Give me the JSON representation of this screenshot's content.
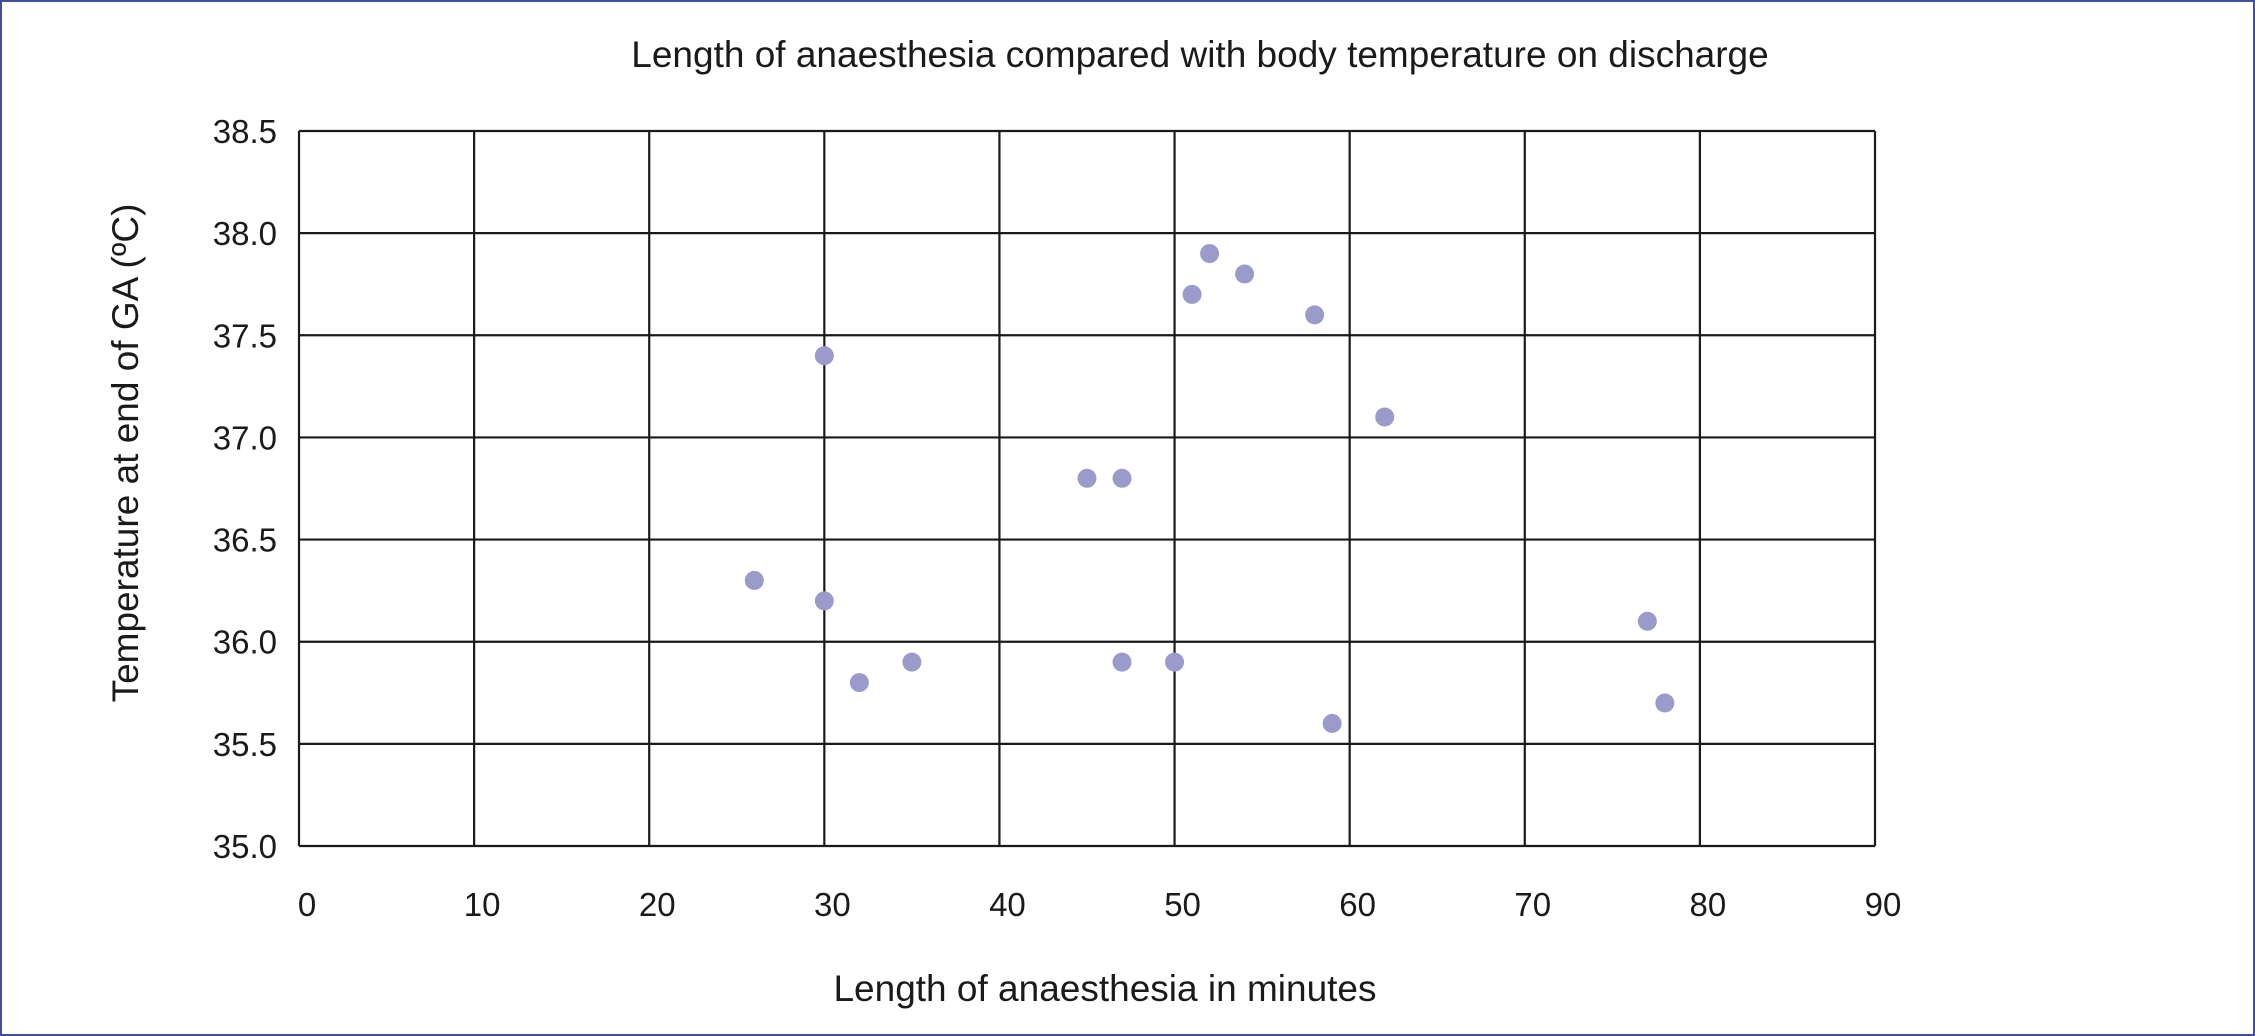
{
  "chart_data": {
    "type": "scatter",
    "title": "Length of anaesthesia compared with body temperature on discharge",
    "xlabel": "Length of anaesthesia in minutes",
    "ylabel": "Temperature at end of GA (ºC)",
    "xlim": [
      0,
      90
    ],
    "ylim": [
      35.0,
      38.5
    ],
    "x_ticks": [
      0,
      10,
      20,
      30,
      40,
      50,
      60,
      70,
      80,
      90
    ],
    "x_tick_labels": [
      "0",
      "10",
      "20",
      "30",
      "40",
      "50",
      "60",
      "70",
      "80",
      "90"
    ],
    "y_ticks": [
      35.0,
      35.5,
      36.0,
      36.5,
      37.0,
      37.5,
      38.0,
      38.5
    ],
    "y_tick_labels": [
      "35.0",
      "35.5",
      "36.0",
      "36.5",
      "37.0",
      "37.5",
      "38.0",
      "38.5"
    ],
    "grid": true,
    "legend": false,
    "marker_color": "#9b9bcb",
    "points": [
      {
        "x": 26,
        "y": 36.3
      },
      {
        "x": 30,
        "y": 37.4
      },
      {
        "x": 30,
        "y": 36.2
      },
      {
        "x": 32,
        "y": 35.8
      },
      {
        "x": 35,
        "y": 35.9
      },
      {
        "x": 45,
        "y": 36.8
      },
      {
        "x": 47,
        "y": 36.8
      },
      {
        "x": 47,
        "y": 35.9
      },
      {
        "x": 50,
        "y": 35.9
      },
      {
        "x": 51,
        "y": 37.7
      },
      {
        "x": 52,
        "y": 37.9
      },
      {
        "x": 54,
        "y": 37.8
      },
      {
        "x": 58,
        "y": 37.6
      },
      {
        "x": 59,
        "y": 35.6
      },
      {
        "x": 62,
        "y": 37.1
      },
      {
        "x": 77,
        "y": 36.1
      },
      {
        "x": 78,
        "y": 35.7
      }
    ]
  }
}
